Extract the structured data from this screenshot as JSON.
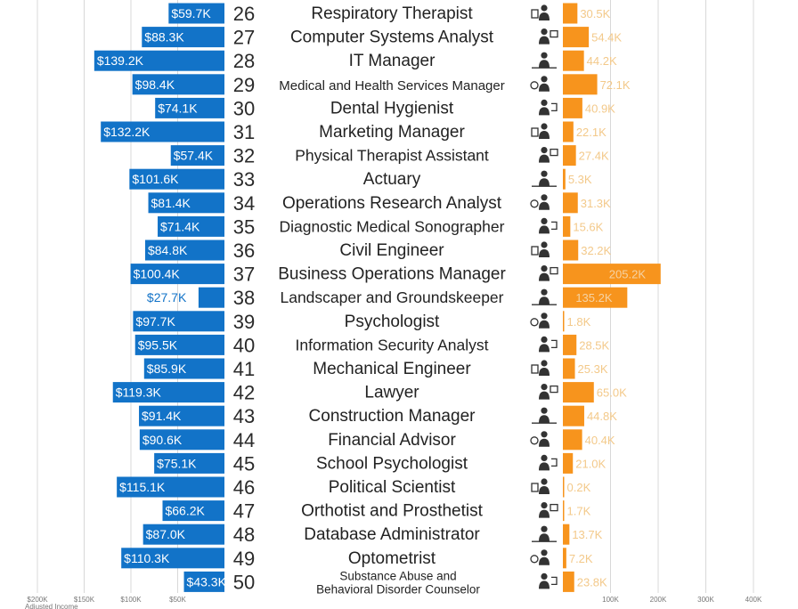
{
  "chart_data": {
    "type": "bar",
    "layout": "diverging-back-to-back",
    "left_series": {
      "name": "",
      "unit": "$",
      "color": "#1273c8"
    },
    "right_series": {
      "name": "",
      "color": "#f7941d"
    },
    "rows": [
      {
        "rank": "26",
        "job": "Respiratory Therapist",
        "salary": 59.7,
        "salary_label": "$59.7K",
        "growth": 30.5,
        "growth_label": "30.5K",
        "icon": "person-laptop-icon"
      },
      {
        "rank": "27",
        "job": "Computer Systems Analyst",
        "salary": 88.3,
        "salary_label": "$88.3K",
        "growth": 54.4,
        "growth_label": "54.4K",
        "icon": "chart-monitor-icon"
      },
      {
        "rank": "28",
        "job": "IT Manager",
        "salary": 139.2,
        "salary_label": "$139.2K",
        "growth": 44.2,
        "growth_label": "44.2K",
        "icon": "person-desk-icon"
      },
      {
        "rank": "29",
        "job": "Medical and Health Services Manager",
        "salary": 98.4,
        "salary_label": "$98.4K",
        "growth": 72.1,
        "growth_label": "72.1K",
        "icon": "medical-board-icon"
      },
      {
        "rank": "30",
        "job": "Dental Hygienist",
        "salary": 74.1,
        "salary_label": "$74.1K",
        "growth": 40.9,
        "growth_label": "40.9K",
        "icon": "smile-icon"
      },
      {
        "rank": "31",
        "job": "Marketing Manager",
        "salary": 132.2,
        "salary_label": "$132.2K",
        "growth": 22.1,
        "growth_label": "22.1K",
        "icon": "presentation-icon"
      },
      {
        "rank": "32",
        "job": "Physical Therapist Assistant",
        "salary": 57.4,
        "salary_label": "$57.4K",
        "growth": 27.4,
        "growth_label": "27.4K",
        "icon": "therapy-icon"
      },
      {
        "rank": "33",
        "job": "Actuary",
        "salary": 101.6,
        "salary_label": "$101.6K",
        "growth": 5.3,
        "growth_label": "5.3K",
        "icon": "calculator-person-icon"
      },
      {
        "rank": "34",
        "job": "Operations Research Analyst",
        "salary": 81.4,
        "salary_label": "$81.4K",
        "growth": 31.3,
        "growth_label": "31.3K",
        "icon": "analyst-screen-icon"
      },
      {
        "rank": "35",
        "job": "Diagnostic Medical Sonographer",
        "salary": 71.4,
        "salary_label": "$71.4K",
        "growth": 15.6,
        "growth_label": "15.6K",
        "icon": "sonograph-icon"
      },
      {
        "rank": "36",
        "job": "Civil Engineer",
        "salary": 84.8,
        "salary_label": "$84.8K",
        "growth": 32.2,
        "growth_label": "32.2K",
        "icon": "engineer-icon"
      },
      {
        "rank": "37",
        "job": "Business Operations Manager",
        "salary": 100.4,
        "salary_label": "$100.4K",
        "growth": 205.2,
        "growth_label": "205.2K",
        "icon": "business-people-icon"
      },
      {
        "rank": "38",
        "job": "Landscaper and Groundskeeper",
        "salary": 27.7,
        "salary_label": "$27.7K",
        "growth": 135.2,
        "growth_label": "135.2K",
        "icon": "gardener-icon"
      },
      {
        "rank": "39",
        "job": "Psychologist",
        "salary": 97.7,
        "salary_label": "$97.7K",
        "growth": 1.8,
        "growth_label": "1.8K",
        "icon": "psychologist-icon"
      },
      {
        "rank": "40",
        "job": "Information Security Analyst",
        "salary": 95.5,
        "salary_label": "$95.5K",
        "growth": 28.5,
        "growth_label": "28.5K",
        "icon": "security-screen-icon"
      },
      {
        "rank": "41",
        "job": "Mechanical Engineer",
        "salary": 85.9,
        "salary_label": "$85.9K",
        "growth": 25.3,
        "growth_label": "25.3K",
        "icon": "hardhat-person-icon"
      },
      {
        "rank": "42",
        "job": "Lawyer",
        "salary": 119.3,
        "salary_label": "$119.3K",
        "growth": 65.0,
        "growth_label": "65.0K",
        "icon": "scales-icon"
      },
      {
        "rank": "43",
        "job": "Construction Manager",
        "salary": 91.4,
        "salary_label": "$91.4K",
        "growth": 44.8,
        "growth_label": "44.8K",
        "icon": "construction-icon"
      },
      {
        "rank": "44",
        "job": "Financial Advisor",
        "salary": 90.6,
        "salary_label": "$90.6K",
        "growth": 40.4,
        "growth_label": "40.4K",
        "icon": "advisor-icon"
      },
      {
        "rank": "45",
        "job": "School Psychologist",
        "salary": 75.1,
        "salary_label": "$75.1K",
        "growth": 21.0,
        "growth_label": "21.0K",
        "icon": "school-icon"
      },
      {
        "rank": "46",
        "job": "Political Scientist",
        "salary": 115.1,
        "salary_label": "$115.1K",
        "growth": 0.2,
        "growth_label": "0.2K",
        "icon": "globe-person-icon"
      },
      {
        "rank": "47",
        "job": "Orthotist and Prosthetist",
        "salary": 66.2,
        "salary_label": "$66.2K",
        "growth": 1.7,
        "growth_label": "1.7K",
        "icon": "prosthetic-icon"
      },
      {
        "rank": "48",
        "job": "Database Administrator",
        "salary": 87.0,
        "salary_label": "$87.0K",
        "growth": 13.7,
        "growth_label": "13.7K",
        "icon": "database-icon"
      },
      {
        "rank": "49",
        "job": "Optometrist",
        "salary": 110.3,
        "salary_label": "$110.3K",
        "growth": 7.2,
        "growth_label": "7.2K",
        "icon": "glasses-person-icon"
      },
      {
        "rank": "50",
        "job": "Substance Abuse and\nBehavioral Disorder Counselor",
        "salary": 43.3,
        "salary_label": "$43.3K",
        "growth": 23.8,
        "growth_label": "23.8K",
        "icon": "counselor-icon"
      }
    ],
    "left_axis": {
      "ticks": [
        200,
        150,
        100,
        50
      ],
      "tick_labels": [
        "$200K",
        "$150K",
        "$100K",
        "$50K"
      ],
      "range": [
        0,
        200
      ]
    },
    "right_axis": {
      "ticks": [
        100,
        200,
        300,
        400
      ],
      "tick_labels": [
        "100K",
        "200K",
        "300K",
        "400K"
      ],
      "range": [
        0,
        400
      ]
    },
    "bottom_note": "Adjusted Income",
    "grid": true,
    "colors": {
      "salary": "#1273c8",
      "growth": "#f7941d",
      "grid": "#d8d8d8"
    }
  }
}
